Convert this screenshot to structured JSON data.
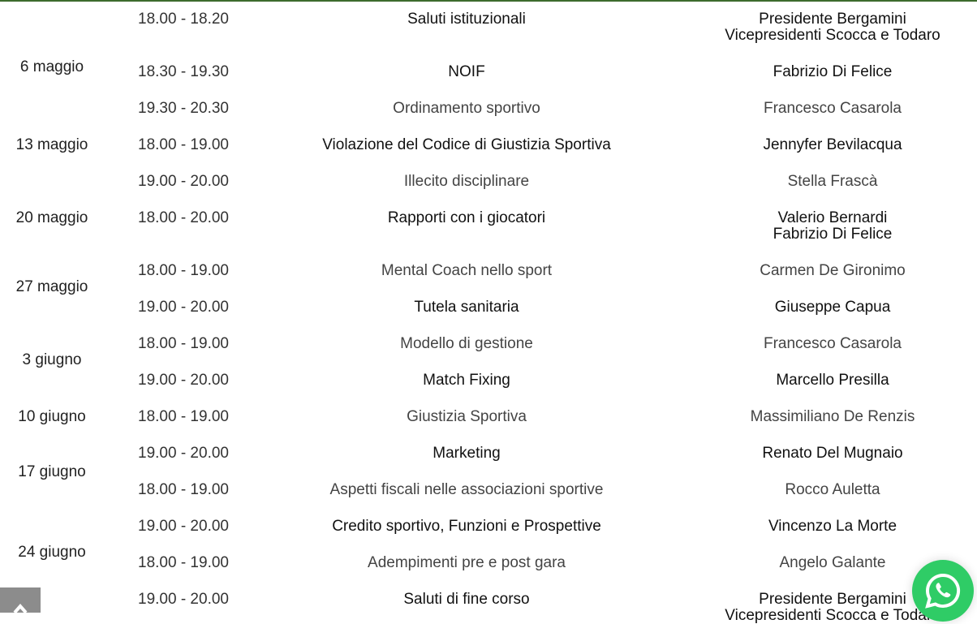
{
  "dates": [
    {
      "label": "6 maggio",
      "row": 0.9
    },
    {
      "label": "13 maggio",
      "row": 3
    },
    {
      "label": "20 maggio",
      "row": 5
    },
    {
      "label": "27 maggio",
      "row": 6.45
    },
    {
      "label": "3 giugno",
      "row": 8.45
    },
    {
      "label": "10 giugno",
      "row": 10
    },
    {
      "label": "17 giugno",
      "row": 11.5
    },
    {
      "label": "24 giugno",
      "row": 13.7
    }
  ],
  "sessions": [
    {
      "time": "18.00 - 18.20",
      "topic": "Saluti istituzionali",
      "speaker": [
        "Presidente Bergamini",
        "Vicepresidenti Scocca e Todaro"
      ]
    },
    {
      "time": "18.30 - 19.30",
      "topic": "NOIF",
      "speaker": [
        "Fabrizio Di Felice"
      ]
    },
    {
      "time": "19.30 - 20.30",
      "topic": "Ordinamento sportivo",
      "speaker": [
        "Francesco Casarola"
      ]
    },
    {
      "time": "18.00 - 19.00",
      "topic": "Violazione del Codice di Giustizia Sportiva",
      "speaker": [
        "Jennyfer Bevilacqua"
      ]
    },
    {
      "time": "19.00 - 20.00",
      "topic": "Illecito disciplinare",
      "speaker": [
        "Stella Frascà"
      ]
    },
    {
      "time": "18.00 - 20.00",
      "topic": "Rapporti con i giocatori",
      "speaker": [
        "Valerio Bernardi",
        "Fabrizio Di Felice"
      ]
    },
    {
      "time": "18.00 - 19.00",
      "topic": "Mental Coach nello sport",
      "speaker": [
        "Carmen De Gironimo"
      ]
    },
    {
      "time": "19.00 - 20.00",
      "topic": "Tutela sanitaria",
      "speaker": [
        "Giuseppe Capua"
      ]
    },
    {
      "time": "18.00 - 19.00",
      "topic": "Modello di gestione",
      "speaker": [
        "Francesco Casarola"
      ]
    },
    {
      "time": "19.00 - 20.00",
      "topic": "Match Fixing",
      "speaker": [
        "Marcello Presilla"
      ]
    },
    {
      "time": "18.00 - 19.00",
      "topic": "Giustizia Sportiva",
      "speaker": [
        "Massimiliano De Renzis"
      ]
    },
    {
      "time": "19.00 - 20.00",
      "topic": "Marketing",
      "speaker": [
        "Renato Del Mugnaio"
      ]
    },
    {
      "time": "18.00 - 19.00",
      "topic": "Aspetti fiscali nelle associazioni sportive",
      "speaker": [
        "Rocco Auletta"
      ]
    },
    {
      "time": "19.00 - 20.00",
      "topic": "Credito sportivo, Funzioni e Prospettive",
      "speaker": [
        "Vincenzo La Morte"
      ]
    },
    {
      "time": "18.00 - 19.00",
      "topic": "Adempimenti pre e post gara",
      "speaker": [
        "Angelo Galante"
      ]
    },
    {
      "time": "19.00 - 20.00",
      "topic": "Saluti di fine corso",
      "speaker": [
        "Presidente Bergamini",
        "Vicepresidenti Scocca e Todaro"
      ]
    }
  ],
  "colors": {
    "accent_line": "#3d6b2d",
    "whatsapp": "#2fcc66",
    "scroll_button": "#8c8c8c"
  },
  "icons": {
    "scroll_top": "chevron-up-icon",
    "whatsapp": "whatsapp-icon"
  }
}
